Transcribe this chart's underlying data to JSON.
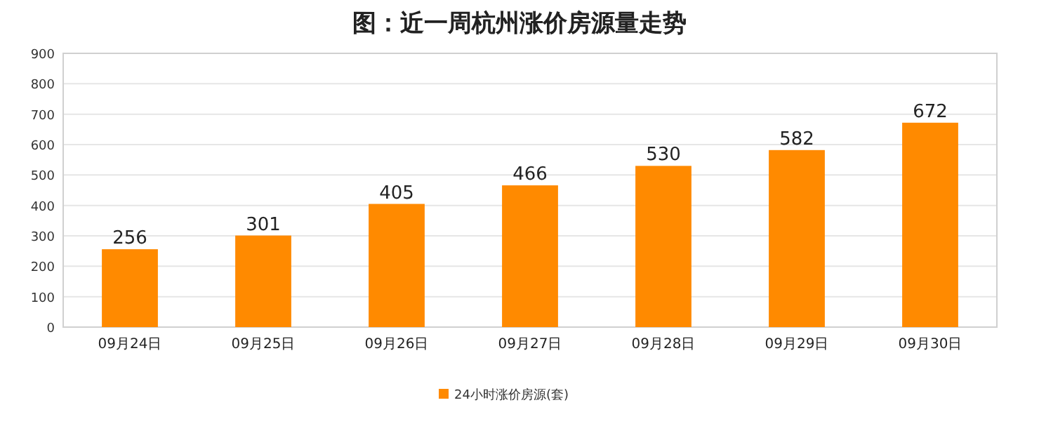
{
  "chart_data": {
    "type": "bar",
    "title": "图：近一周杭州涨价房源量走势",
    "categories": [
      "09月24日",
      "09月25日",
      "09月26日",
      "09月27日",
      "09月28日",
      "09月29日",
      "09月30日"
    ],
    "series": [
      {
        "name": "24小时涨价房源(套)",
        "color": "#ff8a00",
        "values": [
          256,
          301,
          405,
          466,
          530,
          582,
          672
        ]
      }
    ],
    "ylim": [
      0,
      900
    ],
    "yticks": [
      0,
      100,
      200,
      300,
      400,
      500,
      600,
      700,
      800,
      900
    ],
    "grid": "y",
    "legend": "bottom",
    "data_labels": true
  }
}
